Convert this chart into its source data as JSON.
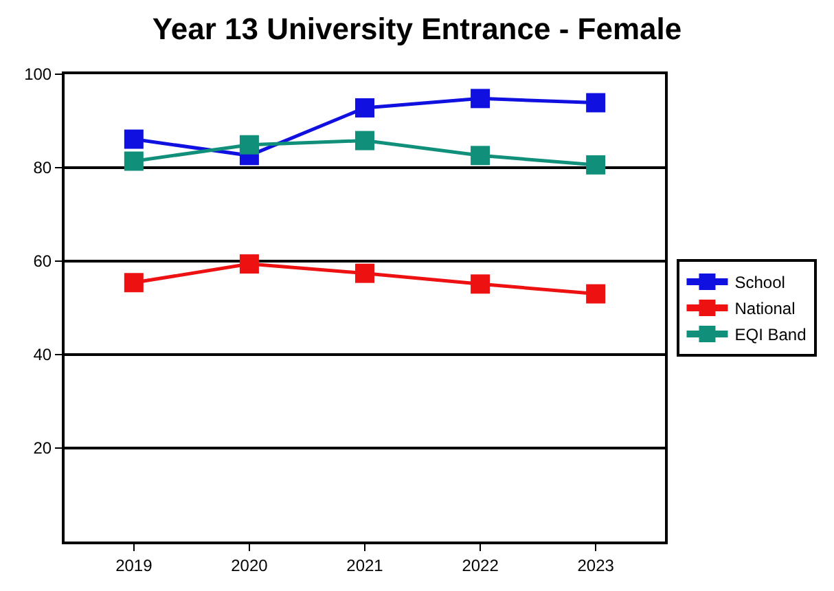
{
  "chart_data": {
    "type": "line",
    "title": "Year 13 University Entrance - Female",
    "categories": [
      "2019",
      "2020",
      "2021",
      "2022",
      "2023"
    ],
    "series": [
      {
        "name": "School",
        "color": "#1010e0",
        "values": [
          86.1,
          82.6,
          92.8,
          94.8,
          93.9
        ]
      },
      {
        "name": "National",
        "color": "#ee1111",
        "values": [
          55.4,
          59.4,
          57.4,
          55.1,
          53.0
        ]
      },
      {
        "name": "EQI Band",
        "color": "#10907a",
        "values": [
          81.4,
          84.9,
          85.8,
          82.6,
          80.6
        ]
      }
    ],
    "ylim": [
      0,
      100
    ],
    "yticks": [
      20,
      40,
      60,
      80,
      100
    ],
    "grid": "y",
    "legend": "right",
    "marker": "square",
    "line_style": "solid"
  }
}
